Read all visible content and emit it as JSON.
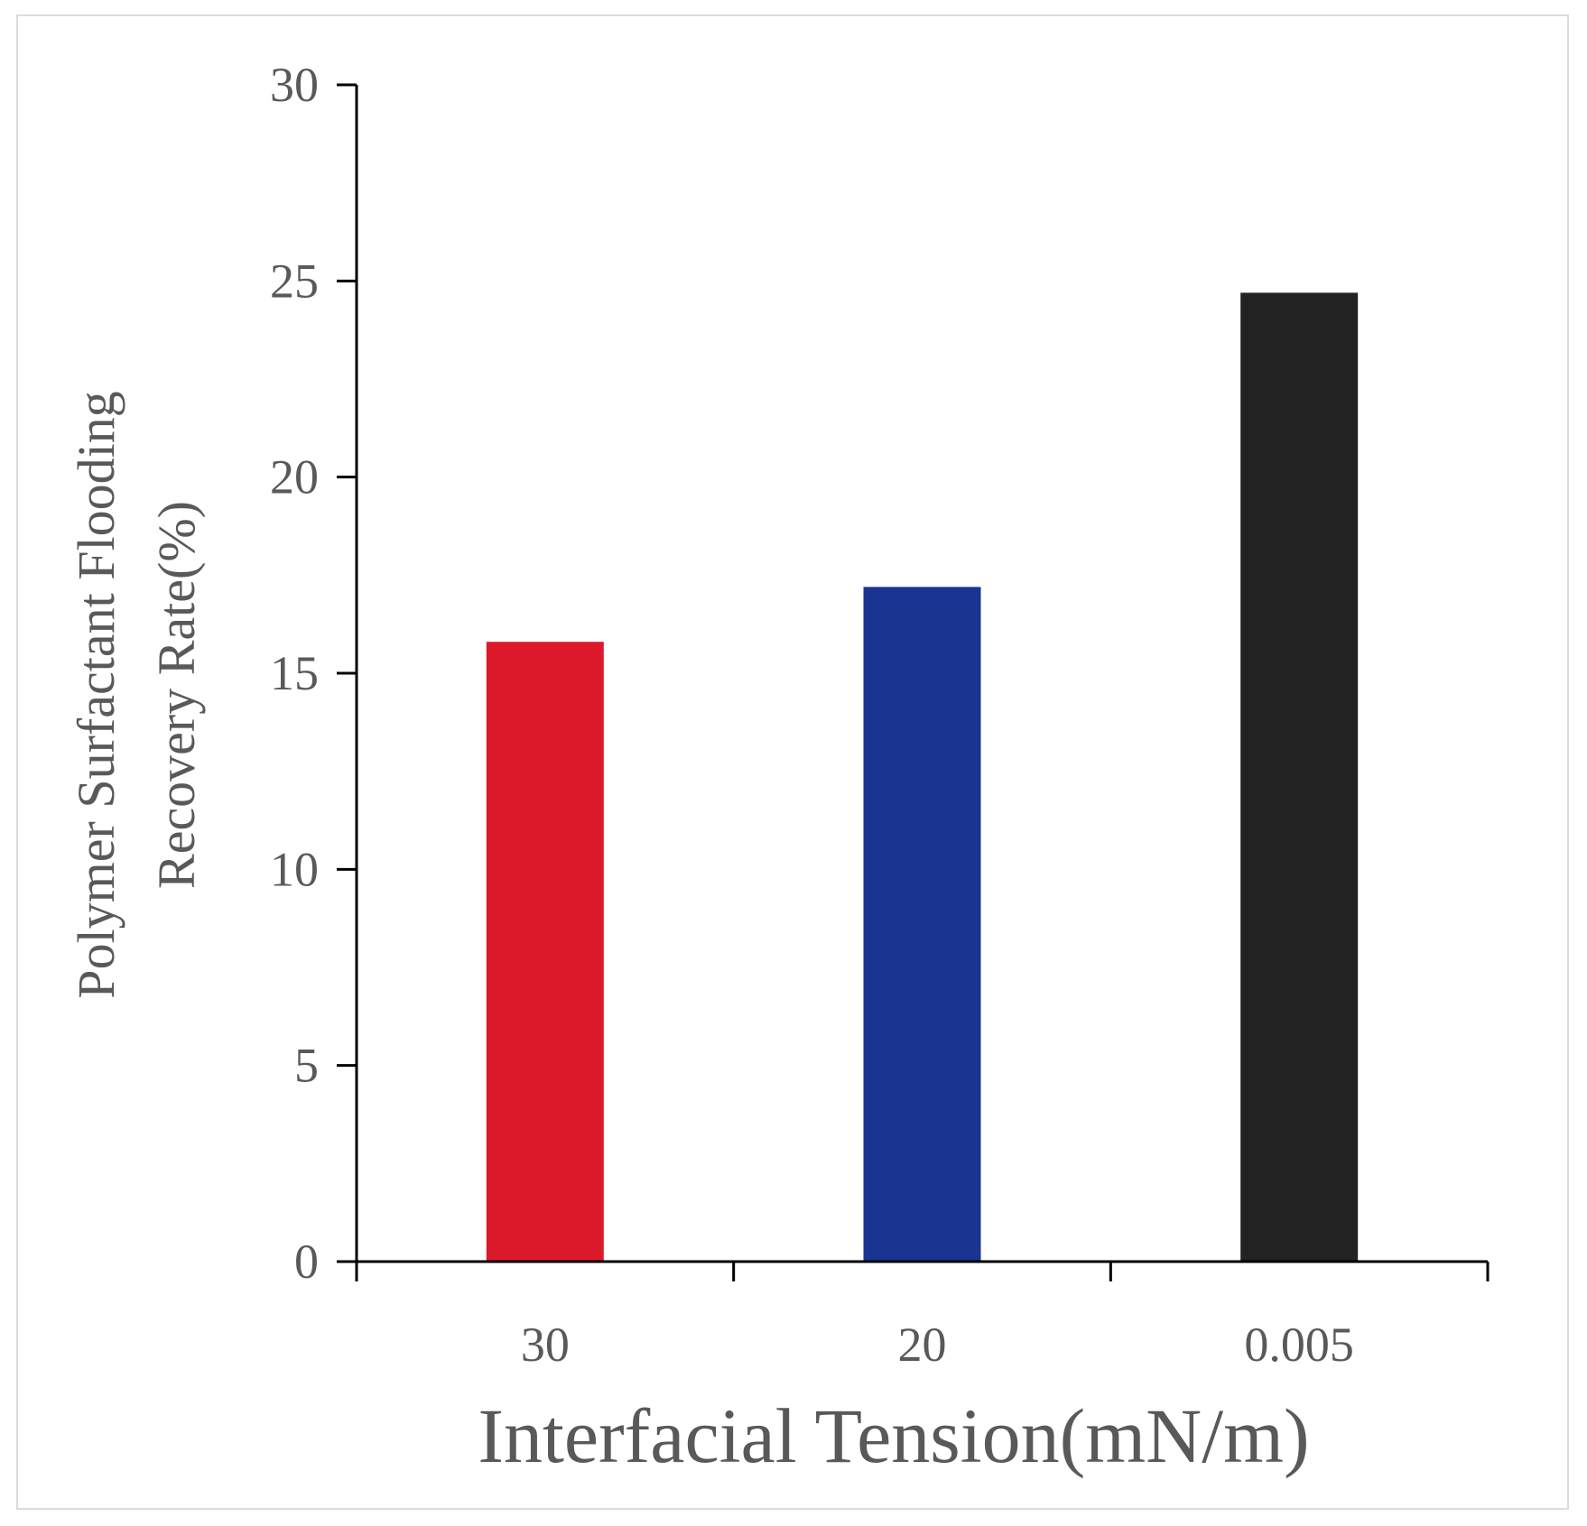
{
  "chart_data": {
    "type": "bar",
    "title": "",
    "categories": [
      "30",
      "20",
      "0.005"
    ],
    "values": [
      15.8,
      17.2,
      24.7
    ],
    "bar_colors": [
      "#dc1a2c",
      "#1a3492",
      "#222222"
    ],
    "xlabel": "Interfacial Tension(mN/m)",
    "ylabel_lines": [
      "Polymer Surfactant Flooding",
      "Recovery Rate(%)"
    ],
    "ylim": [
      0,
      30
    ],
    "yticks": [
      0,
      5,
      10,
      15,
      20,
      25,
      30
    ],
    "grid": false,
    "legend": "none"
  }
}
